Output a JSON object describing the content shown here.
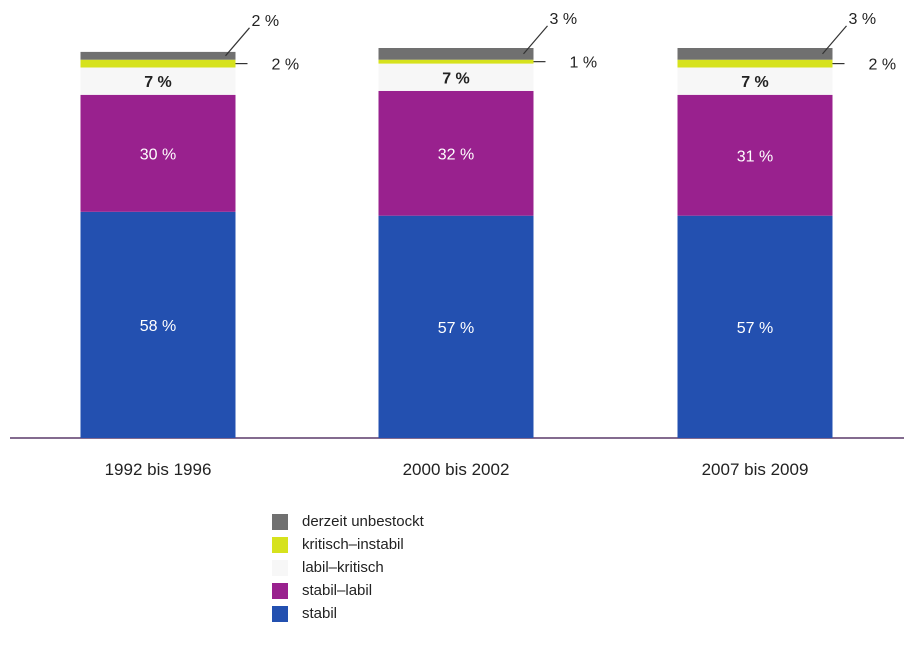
{
  "chart_data": {
    "type": "bar",
    "stacked": true,
    "categories": [
      "1992 bis 1996",
      "2000 bis 2002",
      "2007 bis 2009"
    ],
    "series": [
      {
        "name": "stabil",
        "color": "#2350B0",
        "values": [
          58,
          57,
          57
        ],
        "labels": [
          "58 %",
          "57 %",
          "57 %"
        ]
      },
      {
        "name": "stabil–labil",
        "color": "#99218E",
        "values": [
          30,
          32,
          31
        ],
        "labels": [
          "30 %",
          "32 %",
          "31 %"
        ]
      },
      {
        "name": "labil–kritisch",
        "color": "#F7F7F7",
        "values": [
          7,
          7,
          7
        ],
        "labels": [
          "7 %",
          "7 %",
          "7 %"
        ]
      },
      {
        "name": "kritisch–instabil",
        "color": "#D6E21D",
        "values": [
          2,
          1,
          2
        ],
        "labels": [
          "2 %",
          "1 %",
          "2 %"
        ]
      },
      {
        "name": "derzeit unbestockt",
        "color": "#707070",
        "values": [
          2,
          3,
          3
        ],
        "labels": [
          "2 %",
          "3 %",
          "3 %"
        ]
      }
    ],
    "ylim": [
      0,
      100
    ],
    "legend_position": "bottom"
  }
}
